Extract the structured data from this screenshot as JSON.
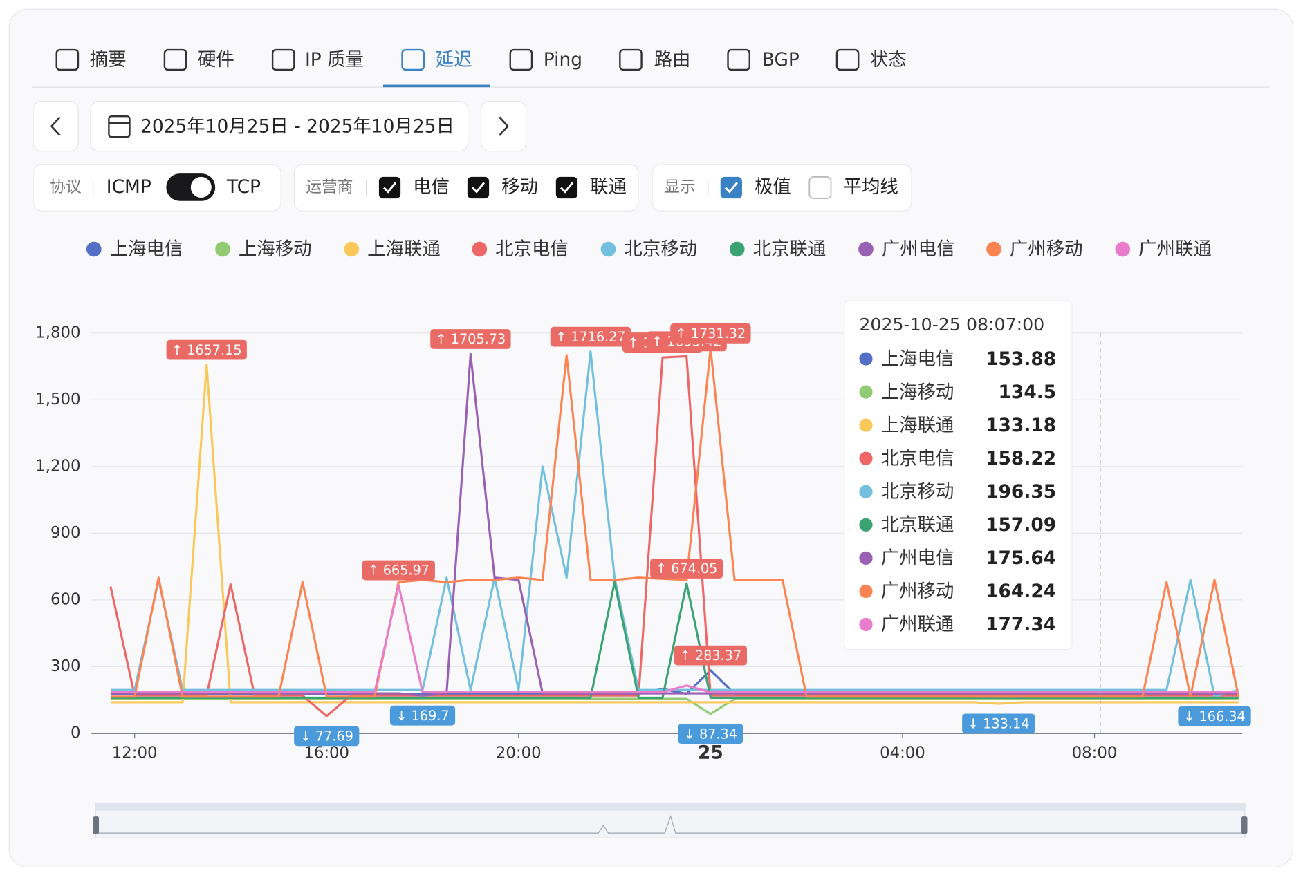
{
  "tabs": [
    "摘要",
    "硬件",
    "IP 质量",
    "延迟",
    "Ping",
    "路由",
    "BGP",
    "状态"
  ],
  "active_tab": 3,
  "date_range": "2025年10月25日 - 2025年10月25日",
  "filters": {
    "protocol": {
      "label": "协议",
      "options": [
        "ICMP",
        "TCP"
      ]
    },
    "carrier": {
      "label": "运营商",
      "options": [
        "电信",
        "移动",
        "联通"
      ],
      "checked": [
        true,
        true,
        true
      ]
    },
    "display": {
      "label": "显示",
      "options": [
        "极值",
        "平均线"
      ],
      "checked": [
        true,
        false
      ]
    }
  },
  "chart_data": {
    "type": "line",
    "xlim": [
      11.1,
      35.08
    ],
    "ylim": [
      0,
      1800
    ],
    "yticks": [
      0,
      300,
      600,
      900,
      {
        "value": 1200,
        "label": "1,200"
      },
      {
        "value": 1500,
        "label": "1,500"
      },
      {
        "value": 1800,
        "label": "1,800"
      }
    ],
    "xticks": [
      {
        "value": 12,
        "label": "12:00"
      },
      {
        "value": 16,
        "label": "16:00"
      },
      {
        "value": 20,
        "label": "20:00"
      },
      {
        "value": 24,
        "label": "25"
      },
      {
        "value": 28,
        "label": "04:00"
      },
      {
        "value": 32,
        "label": "08:00"
      }
    ],
    "grid": true,
    "x": [
      11.5,
      12,
      12.5,
      13,
      13.5,
      14,
      14.5,
      15,
      15.5,
      16,
      16.5,
      17,
      17.5,
      18,
      18.5,
      19,
      19.5,
      20,
      20.5,
      21,
      21.5,
      22,
      22.5,
      23,
      23.5,
      24,
      24.5,
      25,
      25.5,
      26,
      26.5,
      27,
      27.5,
      28,
      28.5,
      29,
      29.5,
      30,
      30.5,
      31,
      31.5,
      32,
      32.5,
      33,
      33.5,
      34,
      34.5,
      35
    ],
    "series": [
      {
        "name": "上海电信",
        "color": "#5470c6",
        "values": [
          178,
          178,
          178,
          178,
          178,
          178,
          178,
          178,
          178,
          178,
          178,
          178,
          178,
          178,
          178,
          178,
          178,
          178,
          178,
          178,
          178,
          178,
          178,
          200,
          178,
          283.37,
          178,
          178,
          178,
          178,
          178,
          178,
          178,
          178,
          178,
          178,
          178,
          178,
          178,
          178,
          178,
          178,
          178,
          178,
          178,
          178,
          178,
          178
        ]
      },
      {
        "name": "上海移动",
        "color": "#91cc75",
        "values": [
          155,
          155,
          155,
          155,
          155,
          155,
          155,
          155,
          155,
          155,
          155,
          155,
          155,
          155,
          155,
          155,
          155,
          155,
          155,
          155,
          155,
          155,
          155,
          155,
          155,
          87.34,
          155,
          155,
          155,
          155,
          155,
          155,
          155,
          155,
          155,
          155,
          155,
          155,
          155,
          155,
          155,
          155,
          155,
          155,
          155,
          155,
          155,
          155
        ]
      },
      {
        "name": "上海联通",
        "color": "#fac858",
        "values": [
          140,
          140,
          140,
          140,
          1657.15,
          140,
          140,
          140,
          140,
          140,
          140,
          140,
          140,
          140,
          140,
          140,
          140,
          140,
          140,
          140,
          140,
          140,
          140,
          140,
          140,
          140,
          140,
          140,
          140,
          140,
          140,
          140,
          140,
          140,
          140,
          140,
          140,
          133.14,
          140,
          140,
          140,
          140,
          140,
          140,
          140,
          140,
          140,
          140
        ]
      },
      {
        "name": "北京电信",
        "color": "#ee6666",
        "values": [
          660,
          170,
          170,
          170,
          170,
          670,
          170,
          170,
          170,
          77.69,
          170,
          170,
          170,
          170,
          170,
          170,
          170,
          170,
          170,
          170,
          170,
          170,
          170,
          1690.05,
          1695.42,
          170,
          170,
          170,
          170,
          170,
          170,
          170,
          170,
          170,
          170,
          170,
          170,
          170,
          170,
          170,
          170,
          170,
          170,
          170,
          170,
          170,
          170,
          170
        ]
      },
      {
        "name": "北京移动",
        "color": "#73c0de",
        "values": [
          195,
          195,
          690,
          195,
          195,
          195,
          195,
          195,
          195,
          195,
          195,
          195,
          195,
          195,
          700,
          195,
          700,
          195,
          1200,
          700,
          1716.27,
          700,
          195,
          195,
          195,
          195,
          195,
          195,
          195,
          195,
          195,
          195,
          195,
          195,
          195,
          195,
          195,
          195,
          195,
          195,
          195,
          195,
          195,
          195,
          195,
          690,
          166.34,
          195
        ]
      },
      {
        "name": "北京联通",
        "color": "#3ba272",
        "values": [
          160,
          160,
          160,
          160,
          160,
          160,
          160,
          160,
          160,
          160,
          160,
          160,
          160,
          160,
          160,
          160,
          160,
          160,
          160,
          160,
          160,
          680,
          160,
          160,
          674.05,
          160,
          160,
          160,
          160,
          160,
          160,
          160,
          160,
          160,
          160,
          160,
          160,
          160,
          160,
          160,
          160,
          160,
          160,
          160,
          160,
          160,
          160,
          160
        ]
      },
      {
        "name": "广州电信",
        "color": "#9a60b4",
        "values": [
          180,
          180,
          180,
          180,
          180,
          180,
          180,
          180,
          180,
          180,
          180,
          180,
          180,
          169.7,
          180,
          1705.73,
          700,
          690,
          180,
          180,
          180,
          180,
          180,
          180,
          180,
          180,
          180,
          180,
          180,
          180,
          180,
          180,
          180,
          180,
          180,
          180,
          180,
          180,
          180,
          180,
          180,
          180,
          180,
          180,
          180,
          180,
          180,
          180
        ]
      },
      {
        "name": "广州移动",
        "color": "#fc8452",
        "values": [
          165,
          165,
          700,
          165,
          165,
          165,
          165,
          165,
          680,
          165,
          165,
          165,
          680,
          690,
          680,
          690,
          690,
          700,
          690,
          1700,
          690,
          690,
          700,
          695,
          690,
          1731.32,
          690,
          690,
          690,
          165,
          165,
          165,
          165,
          165,
          165,
          165,
          165,
          165,
          165,
          165,
          165,
          165,
          165,
          165,
          680,
          165,
          690,
          165
        ]
      },
      {
        "name": "广州联通",
        "color": "#ea7ccc",
        "values": [
          185,
          185,
          185,
          185,
          185,
          185,
          185,
          185,
          185,
          185,
          185,
          185,
          665.97,
          185,
          185,
          185,
          185,
          185,
          185,
          185,
          185,
          185,
          185,
          185,
          215,
          185,
          185,
          185,
          185,
          185,
          185,
          185,
          185,
          185,
          185,
          185,
          185,
          185,
          185,
          185,
          185,
          185,
          185,
          185,
          185,
          185,
          185,
          185
        ]
      }
    ],
    "markers": [
      {
        "kind": "max",
        "x": 13.5,
        "value": 1657.15,
        "label": "↑ 1657.15"
      },
      {
        "kind": "max",
        "x": 19,
        "value": 1705.73,
        "label": "↑ 1705.73"
      },
      {
        "kind": "max",
        "x": 21.5,
        "value": 1716.27,
        "label": "↑ 1716.27"
      },
      {
        "kind": "max",
        "x": 23,
        "value": 1690.05,
        "label": "↑ 1690.05"
      },
      {
        "kind": "max",
        "x": 23.5,
        "value": 1695.42,
        "label": "↑ 1695.42"
      },
      {
        "kind": "max",
        "x": 24,
        "value": 1731.32,
        "label": "↑ 1731.32"
      },
      {
        "kind": "max",
        "x": 17.5,
        "value": 665.97,
        "label": "↑ 665.97"
      },
      {
        "kind": "max",
        "x": 23.5,
        "value": 674.05,
        "label": "↑ 674.05"
      },
      {
        "kind": "max",
        "x": 24,
        "value": 283.37,
        "label": "↑ 283.37"
      },
      {
        "kind": "min",
        "x": 16,
        "value": 77.69,
        "label": "↓ 77.69"
      },
      {
        "kind": "min",
        "x": 18,
        "value": 169.7,
        "label": "↓ 169.7"
      },
      {
        "kind": "min",
        "x": 24,
        "value": 87.34,
        "label": "↓ 87.34"
      },
      {
        "kind": "min",
        "x": 30,
        "value": 133.14,
        "label": "↓ 133.14"
      },
      {
        "kind": "min",
        "x": 34.5,
        "value": 166.34,
        "label": "↓ 166.34"
      }
    ],
    "tooltip": {
      "title": "2025-10-25 08:07:00",
      "x": 32.12,
      "values": [
        153.88,
        134.5,
        133.18,
        158.22,
        196.35,
        157.09,
        175.64,
        164.24,
        177.34
      ]
    }
  }
}
